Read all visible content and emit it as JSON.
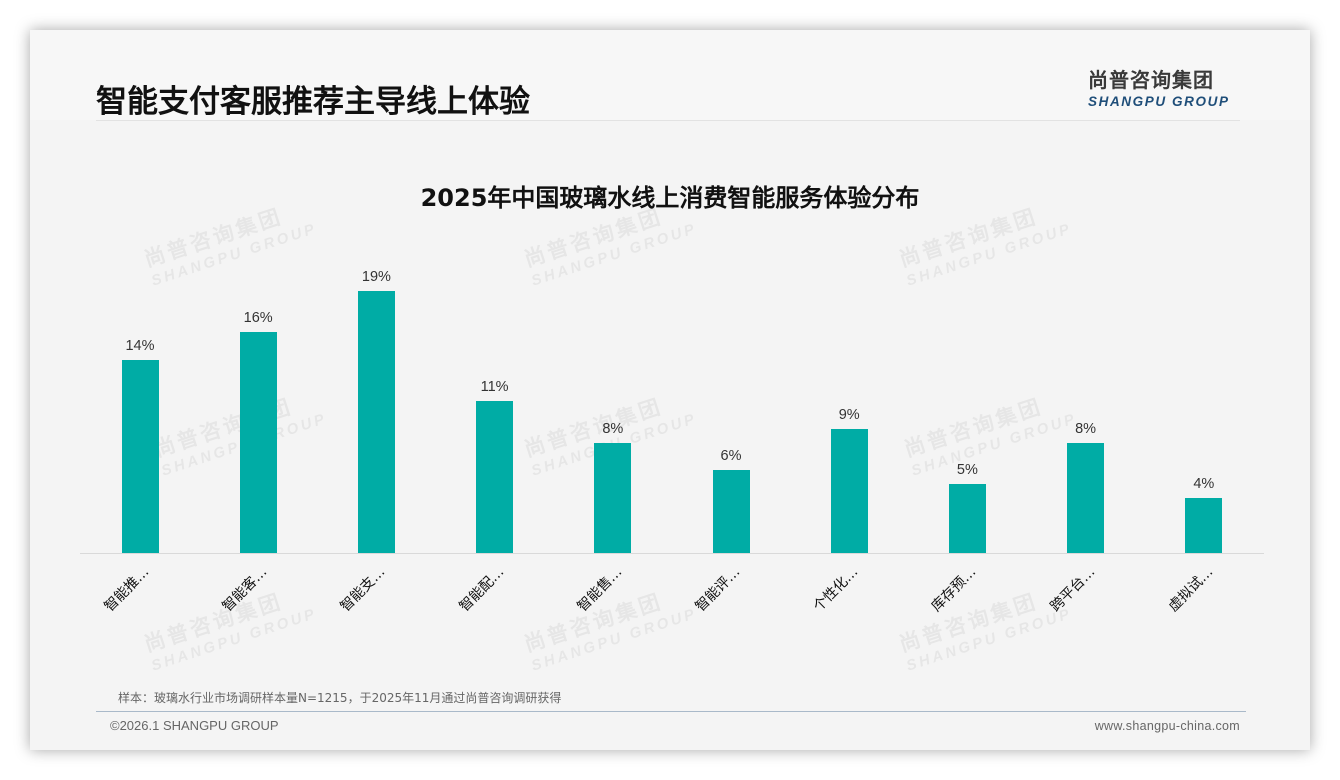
{
  "header": {
    "page_title": "智能支付客服推荐主导线上体验",
    "logo_cn": "尚普咨询集团",
    "logo_en": "SHANGPU GROUP"
  },
  "watermark": {
    "cn": "尚普咨询集团",
    "en": "SHANGPU GROUP"
  },
  "chart_data": {
    "type": "bar",
    "title": "2025年中国玻璃水线上消费智能服务体验分布",
    "categories": [
      "智能推…",
      "智能客…",
      "智能支…",
      "智能配…",
      "智能售…",
      "智能评…",
      "个性化…",
      "库存预…",
      "跨平台…",
      "虚拟试…"
    ],
    "values": [
      14,
      16,
      19,
      11,
      8,
      6,
      9,
      5,
      8,
      4
    ],
    "value_labels": [
      "14%",
      "16%",
      "19%",
      "11%",
      "8%",
      "6%",
      "9%",
      "5%",
      "8%",
      "4%"
    ],
    "unit": "%",
    "xlabel": "",
    "ylabel": "",
    "ylim": [
      0,
      23.4
    ],
    "grid": false,
    "legend": null,
    "bar_color": "#00aca5"
  },
  "footer": {
    "note": "样本：玻璃水行业市场调研样本量N=1215，于2025年11月通过尚普咨询调研获得",
    "copyright": "©2026.1 SHANGPU GROUP",
    "website": "www.shangpu-china.com"
  }
}
